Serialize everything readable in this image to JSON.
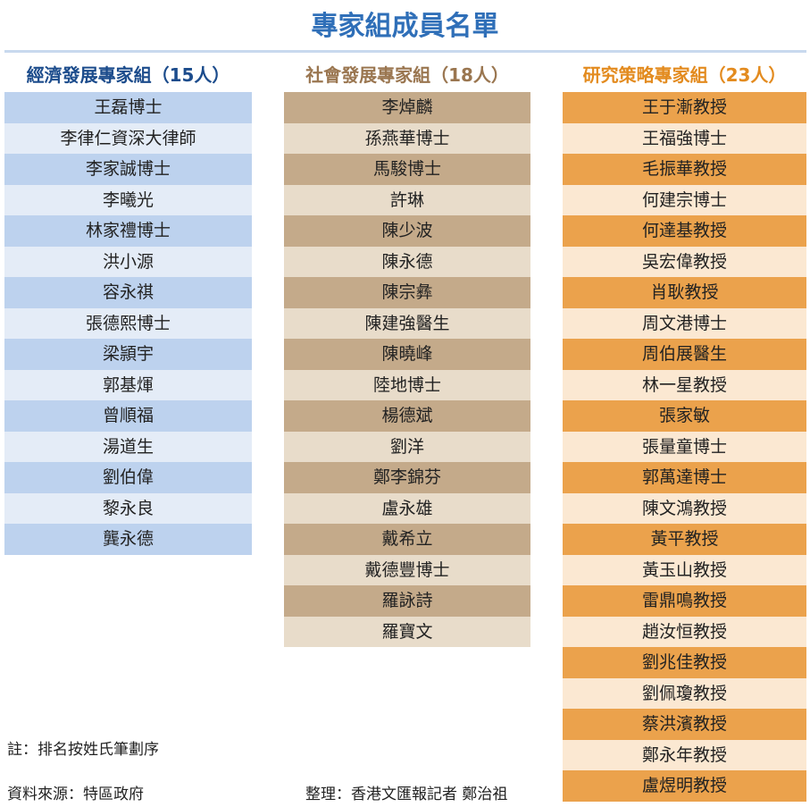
{
  "header": {
    "title": "專家組成員名單"
  },
  "columns": [
    {
      "title": "經濟發展專家組（15人）",
      "members": [
        "王磊博士",
        "李律仁資深大律師",
        "李家誠博士",
        "李曦光",
        "林家禮博士",
        "洪小源",
        "容永祺",
        "張德熙博士",
        "梁頴宇",
        "郭基煇",
        "曾順福",
        "湯道生",
        "劉伯偉",
        "黎永良",
        "龔永德"
      ]
    },
    {
      "title": "社會發展專家組（18人）",
      "members": [
        "李焯麟",
        "孫燕華博士",
        "馬駿博士",
        "許琳",
        "陳少波",
        "陳永德",
        "陳宗彝",
        "陳建強醫生",
        "陳曉峰",
        "陸地博士",
        "楊德斌",
        "劉洋",
        "鄭李錦芬",
        "盧永雄",
        "戴希立",
        "戴德豐博士",
        "羅詠詩",
        "羅寶文"
      ]
    },
    {
      "title": "研究策略專家組（23人）",
      "members": [
        "王于漸教授",
        "王福強博士",
        "毛振華教授",
        "何建宗博士",
        "何達基教授",
        "吳宏偉教授",
        "肖耿教授",
        "周文港博士",
        "周伯展醫生",
        "林一星教授",
        "張家敏",
        "張量童博士",
        "郭萬達博士",
        "陳文鴻教授",
        "黃平教授",
        "黃玉山教授",
        "雷鼎鳴教授",
        "趙汝恒教授",
        "劉兆佳教授",
        "劉佩瓊教授",
        "蔡洪濱教授",
        "鄭永年教授",
        "盧煜明教授"
      ]
    }
  ],
  "footer": {
    "note": "註：排名按姓氏筆劃序",
    "source": "資料來源：特區政府",
    "credit": "整理：香港文匯報記者 鄭治祖"
  }
}
